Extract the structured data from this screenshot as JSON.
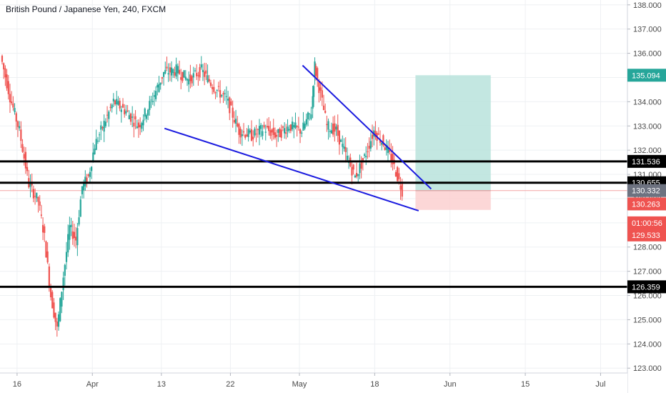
{
  "header": {
    "title": "British Pound / Japanese Yen, 240, FXCM"
  },
  "colors": {
    "up": "#26a69a",
    "down": "#ef5350",
    "grid": "#eef0f3",
    "axis_text": "#4a4a4a",
    "trendline": "#1a1adf",
    "level_line": "#000000",
    "target_zone": "#b9e3dc",
    "stop_zone": "#fbd0d0",
    "price_line": "#f3a3a3"
  },
  "chart_data": {
    "type": "candlestick",
    "title": "British Pound / Japanese Yen, 240, FXCM",
    "ylim": [
      122.8,
      138.2
    ],
    "y_ticks": [
      "123.000",
      "124.000",
      "125.000",
      "126.000",
      "127.000",
      "128.000",
      "129.000",
      "130.000",
      "131.000",
      "132.000",
      "133.000",
      "134.000",
      "135.000",
      "136.000",
      "137.000",
      "138.000"
    ],
    "x_ticks": [
      {
        "label": "16",
        "x": 0.05
      },
      {
        "label": "Apr",
        "x": 0.17
      },
      {
        "label": "13",
        "x": 0.28
      },
      {
        "label": "22",
        "x": 0.39
      },
      {
        "label": "May",
        "x": 0.5
      },
      {
        "label": "18",
        "x": 0.62
      },
      {
        "label": "Jun",
        "x": 0.74
      },
      {
        "label": "15",
        "x": 0.86
      },
      {
        "label": "Jul",
        "x": 0.98
      }
    ],
    "series": [
      {
        "points": [
          [
            0.0,
            135.9
          ],
          [
            0.015,
            134.2
          ],
          [
            0.03,
            132.8
          ],
          [
            0.045,
            130.6
          ],
          [
            0.06,
            129.9
          ],
          [
            0.07,
            128.4
          ],
          [
            0.08,
            126.0
          ],
          [
            0.09,
            124.6
          ],
          [
            0.1,
            126.8
          ],
          [
            0.11,
            128.8
          ],
          [
            0.12,
            128.3
          ],
          [
            0.13,
            130.5
          ],
          [
            0.14,
            130.9
          ],
          [
            0.15,
            132.2
          ],
          [
            0.165,
            133.1
          ],
          [
            0.18,
            134.0
          ],
          [
            0.2,
            133.6
          ],
          [
            0.22,
            133.0
          ],
          [
            0.24,
            134.0
          ],
          [
            0.26,
            135.2
          ],
          [
            0.28,
            135.3
          ],
          [
            0.3,
            134.9
          ],
          [
            0.32,
            135.3
          ],
          [
            0.34,
            134.6
          ],
          [
            0.36,
            134.1
          ],
          [
            0.38,
            132.8
          ],
          [
            0.4,
            132.6
          ],
          [
            0.42,
            132.9
          ],
          [
            0.44,
            132.6
          ],
          [
            0.46,
            133.0
          ],
          [
            0.48,
            132.8
          ],
          [
            0.495,
            133.6
          ],
          [
            0.5,
            135.5
          ],
          [
            0.51,
            134.3
          ],
          [
            0.52,
            133.0
          ],
          [
            0.535,
            132.8
          ],
          [
            0.55,
            131.8
          ],
          [
            0.565,
            130.9
          ],
          [
            0.58,
            131.7
          ],
          [
            0.595,
            132.8
          ],
          [
            0.61,
            132.3
          ],
          [
            0.625,
            131.5
          ],
          [
            0.64,
            130.33
          ]
        ]
      }
    ],
    "horizontal_levels": [
      {
        "value": 131.536,
        "label": "131.536"
      },
      {
        "value": 130.655,
        "label": "130.655"
      },
      {
        "value": 126.359,
        "label": "126.359"
      }
    ],
    "trendlines": [
      {
        "x1": 0.285,
        "y1": 132.9,
        "x2": 0.69,
        "y2": 129.5
      },
      {
        "x1": 0.505,
        "y1": 135.5,
        "x2": 0.71,
        "y2": 130.4
      }
    ],
    "position_tool": {
      "x_start": 0.685,
      "x_end": 0.805,
      "entry": 130.33,
      "target": 135.094,
      "stop": 129.533
    },
    "price_labels": [
      {
        "value": "135.094",
        "y": 135.094,
        "kind": "target"
      },
      {
        "value": "131.536",
        "y": 131.536,
        "kind": "level"
      },
      {
        "value": "130.655",
        "y": 130.655,
        "kind": "level"
      },
      {
        "value": "130.332",
        "y": 130.332,
        "kind": "current"
      },
      {
        "value": "130.263",
        "y": 129.78,
        "kind": "bid"
      },
      {
        "value": "01:00:56",
        "y": 129.0,
        "kind": "timer"
      },
      {
        "value": "129.533",
        "y": 128.5,
        "kind": "bid"
      },
      {
        "value": "126.359",
        "y": 126.359,
        "kind": "level"
      }
    ]
  }
}
